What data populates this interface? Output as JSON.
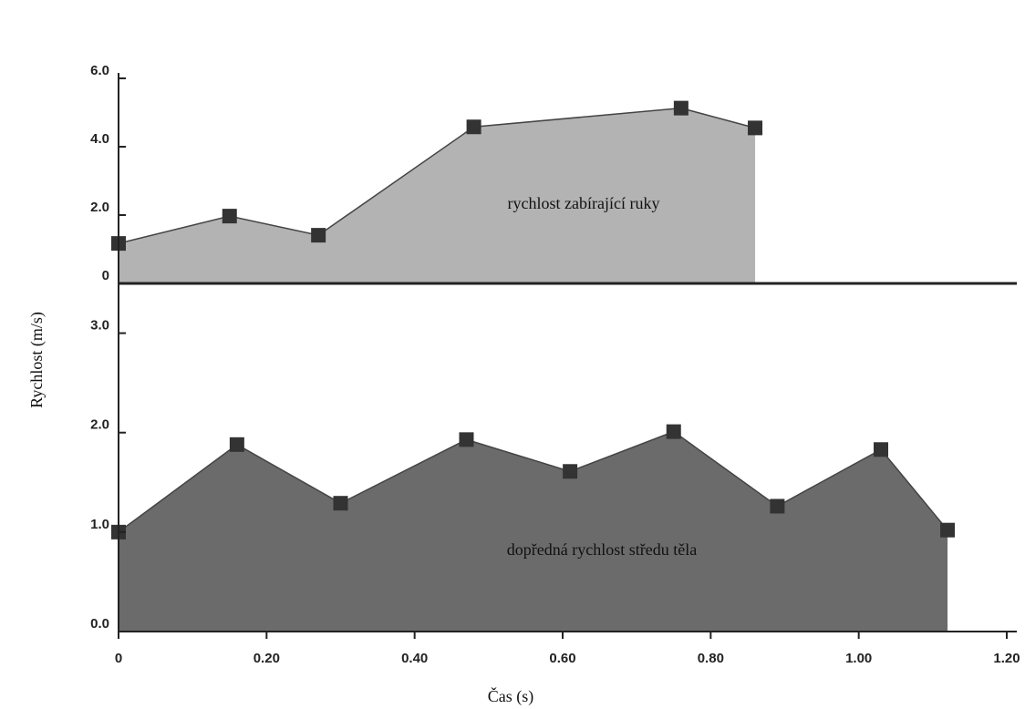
{
  "chart_data": [
    {
      "type": "area",
      "annotation": "rychlost zabírající ruky",
      "ylabel": "Rychlost (m/s)",
      "x": [
        0,
        0.15,
        0.27,
        0.48,
        0.76,
        0.86
      ],
      "values": [
        1.17,
        1.97,
        1.41,
        4.58,
        5.13,
        4.55
      ],
      "color": "#b3b3b3",
      "marker_color": "#333333",
      "xlim": [
        0,
        1.2
      ],
      "ylim": [
        0,
        6
      ],
      "yticks": [
        0,
        {
          "value": 2,
          "label": "2.0"
        },
        {
          "value": 4,
          "label": "4.0"
        },
        {
          "value": 6,
          "label": "6.0"
        }
      ]
    },
    {
      "type": "area",
      "annotation": "dopředná rychlost středu těla",
      "xlabel": "Čas (s)",
      "x": [
        0,
        0.16,
        0.3,
        0.47,
        0.61,
        0.75,
        0.89,
        1.03,
        1.12
      ],
      "values": [
        1.0,
        1.88,
        1.29,
        1.93,
        1.61,
        2.01,
        1.26,
        1.83,
        1.02
      ],
      "color": "#6b6b6b",
      "marker_color": "#333333",
      "xlim": [
        0,
        1.2
      ],
      "ylim": [
        0,
        3.5
      ],
      "xticks": [
        0,
        {
          "value": 0.2,
          "label": "0.20"
        },
        {
          "value": 0.4,
          "label": "0.40"
        },
        {
          "value": 0.6,
          "label": "0.60"
        },
        {
          "value": 0.8,
          "label": "0.80"
        },
        {
          "value": 1.0,
          "label": "1.00"
        },
        {
          "value": 1.2,
          "label": "1.20"
        }
      ],
      "yticks": [
        {
          "value": 0,
          "label": "0.0"
        },
        {
          "value": 1,
          "label": "1.0"
        },
        {
          "value": 2,
          "label": "2.0"
        },
        {
          "value": 3,
          "label": "3.0"
        }
      ]
    }
  ]
}
